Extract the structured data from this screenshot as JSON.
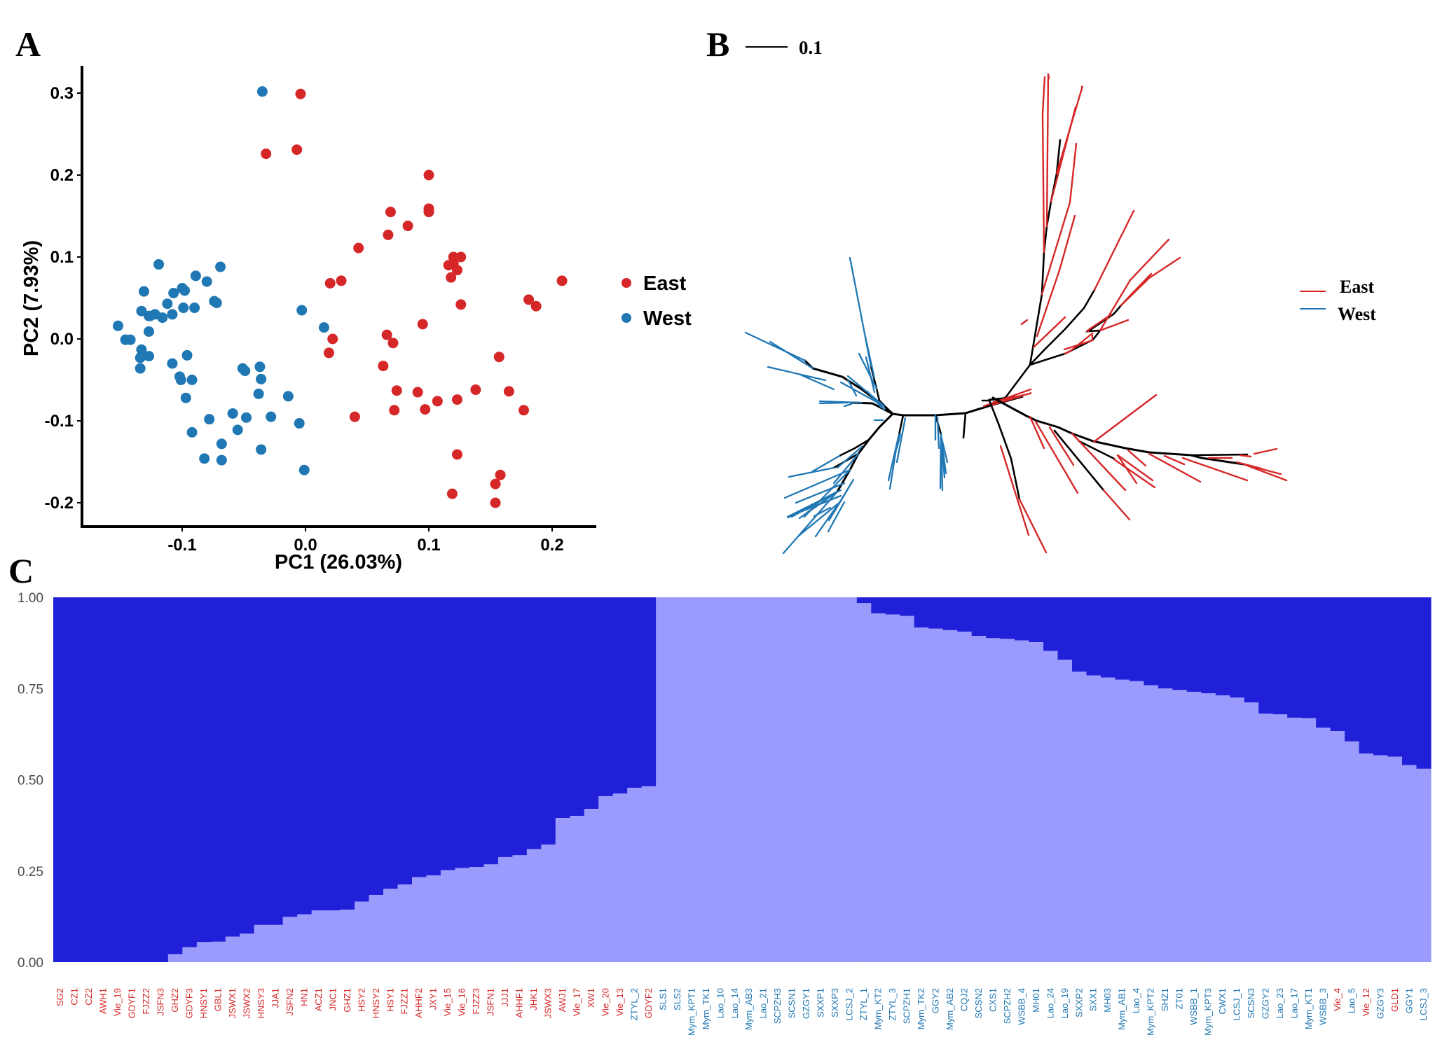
{
  "panels": {
    "a_letter": "A",
    "b_letter": "B",
    "c_letter": "C"
  },
  "colors": {
    "east": "#d62728",
    "west": "#1f77b4",
    "k1": "#2020d8",
    "k2": "#9b9bfd"
  },
  "chart_data": [
    {
      "panel": "A",
      "type": "scatter",
      "title": "",
      "xlabel": "PC1 (26.03%)",
      "ylabel": "PC2 (7.93%)",
      "xlim": [
        -0.18,
        0.235
      ],
      "ylim": [
        -0.232,
        0.33
      ],
      "xticks": [
        -0.1,
        0.0,
        0.1,
        0.2
      ],
      "xtick_labels": [
        "-0.1",
        "0.0",
        "0.1",
        "0.2"
      ],
      "yticks": [
        -0.2,
        -0.1,
        0.0,
        0.1,
        0.2,
        0.3
      ],
      "ytick_labels": [
        "-0.2",
        "-0.1",
        "0.0",
        "0.1",
        "0.2",
        "0.3"
      ],
      "grid": false,
      "legend_position": "right",
      "legend": [
        "East",
        "West"
      ],
      "series": [
        {
          "name": "East",
          "points": [
            [
              -0.004,
              0.299
            ],
            [
              -0.032,
              0.226
            ],
            [
              -0.007,
              0.231
            ],
            [
              0.1,
              0.2
            ],
            [
              0.1,
              0.159
            ],
            [
              0.1,
              0.155
            ],
            [
              0.069,
              0.155
            ],
            [
              0.083,
              0.138
            ],
            [
              0.067,
              0.127
            ],
            [
              0.043,
              0.111
            ],
            [
              0.12,
              0.1
            ],
            [
              0.126,
              0.1
            ],
            [
              0.116,
              0.09
            ],
            [
              0.12,
              0.092
            ],
            [
              0.123,
              0.084
            ],
            [
              0.118,
              0.075
            ],
            [
              0.208,
              0.071
            ],
            [
              0.029,
              0.071
            ],
            [
              0.02,
              0.068
            ],
            [
              0.181,
              0.048
            ],
            [
              0.187,
              0.04
            ],
            [
              0.126,
              0.042
            ],
            [
              0.095,
              0.018
            ],
            [
              0.066,
              0.005
            ],
            [
              0.071,
              -0.005
            ],
            [
              0.022,
              0.0
            ],
            [
              0.019,
              -0.017
            ],
            [
              0.157,
              -0.022
            ],
            [
              0.063,
              -0.033
            ],
            [
              0.074,
              -0.063
            ],
            [
              0.091,
              -0.065
            ],
            [
              0.138,
              -0.062
            ],
            [
              0.165,
              -0.064
            ],
            [
              0.107,
              -0.076
            ],
            [
              0.123,
              -0.074
            ],
            [
              0.072,
              -0.087
            ],
            [
              0.097,
              -0.086
            ],
            [
              0.177,
              -0.087
            ],
            [
              0.04,
              -0.095
            ],
            [
              0.123,
              -0.141
            ],
            [
              0.158,
              -0.166
            ],
            [
              0.154,
              -0.177
            ],
            [
              0.119,
              -0.189
            ],
            [
              0.154,
              -0.2
            ]
          ]
        },
        {
          "name": "West",
          "points": [
            [
              -0.035,
              0.302
            ],
            [
              -0.119,
              0.091
            ],
            [
              -0.069,
              0.088
            ],
            [
              -0.089,
              0.077
            ],
            [
              -0.08,
              0.07
            ],
            [
              -0.131,
              0.058
            ],
            [
              -0.107,
              0.056
            ],
            [
              -0.1,
              0.062
            ],
            [
              -0.098,
              0.059
            ],
            [
              -0.112,
              0.043
            ],
            [
              -0.074,
              0.046
            ],
            [
              -0.072,
              0.044
            ],
            [
              -0.133,
              0.034
            ],
            [
              -0.122,
              0.03
            ],
            [
              -0.127,
              0.028
            ],
            [
              -0.108,
              0.03
            ],
            [
              -0.09,
              0.038
            ],
            [
              -0.126,
              0.028
            ],
            [
              -0.099,
              0.038
            ],
            [
              -0.116,
              0.026
            ],
            [
              -0.152,
              0.016
            ],
            [
              -0.127,
              0.009
            ],
            [
              -0.142,
              -0.001
            ],
            [
              -0.146,
              -0.001
            ],
            [
              -0.003,
              0.035
            ],
            [
              0.015,
              0.014
            ],
            [
              -0.133,
              -0.013
            ],
            [
              -0.127,
              -0.021
            ],
            [
              -0.134,
              -0.023
            ],
            [
              -0.134,
              -0.036
            ],
            [
              -0.096,
              -0.02
            ],
            [
              -0.108,
              -0.03
            ],
            [
              -0.102,
              -0.046
            ],
            [
              -0.101,
              -0.05
            ],
            [
              -0.092,
              -0.05
            ],
            [
              -0.097,
              -0.072
            ],
            [
              -0.051,
              -0.036
            ],
            [
              -0.049,
              -0.039
            ],
            [
              -0.037,
              -0.034
            ],
            [
              -0.036,
              -0.049
            ],
            [
              -0.038,
              -0.067
            ],
            [
              -0.048,
              -0.096
            ],
            [
              -0.059,
              -0.091
            ],
            [
              -0.078,
              -0.098
            ],
            [
              -0.014,
              -0.07
            ],
            [
              -0.092,
              -0.114
            ],
            [
              -0.055,
              -0.111
            ],
            [
              -0.028,
              -0.095
            ],
            [
              -0.005,
              -0.103
            ],
            [
              -0.068,
              -0.128
            ],
            [
              -0.082,
              -0.146
            ],
            [
              -0.068,
              -0.148
            ],
            [
              -0.036,
              -0.135
            ],
            [
              -0.001,
              -0.16
            ]
          ]
        }
      ]
    },
    {
      "panel": "B",
      "type": "tree",
      "title": "",
      "scale_bar_label": "0.1",
      "legend_position": "right",
      "legend": [
        "East",
        "West"
      ],
      "clades": [
        {
          "name": "East",
          "description": "upper-right and lower-right clades"
        },
        {
          "name": "West",
          "description": "left clades"
        }
      ]
    },
    {
      "panel": "C",
      "type": "bar",
      "stacked": true,
      "title": "",
      "xlabel": "",
      "ylabel": "",
      "ylim": [
        0,
        1
      ],
      "yticks": [
        0.0,
        0.25,
        0.5,
        0.75,
        1.0
      ],
      "ytick_labels": [
        "0.00",
        "0.25",
        "0.50",
        "0.75",
        "1.00"
      ],
      "series_names": [
        "K2 (light)",
        "K1 (dark)"
      ],
      "categories": [
        {
          "label": "SG2",
          "group": "East",
          "k2": 0.0
        },
        {
          "label": "CZ1",
          "group": "East",
          "k2": 0.0
        },
        {
          "label": "CZ2",
          "group": "East",
          "k2": 0.0
        },
        {
          "label": "AWH1",
          "group": "East",
          "k2": 0.0
        },
        {
          "label": "Vie_19",
          "group": "East",
          "k2": 0.0
        },
        {
          "label": "GDYF1",
          "group": "East",
          "k2": 0.0
        },
        {
          "label": "FJZZ2",
          "group": "East",
          "k2": 0.0
        },
        {
          "label": "JSFN3",
          "group": "East",
          "k2": 0.0
        },
        {
          "label": "GHZ2",
          "group": "East",
          "k2": 0.022
        },
        {
          "label": "GDYF3",
          "group": "East",
          "k2": 0.041
        },
        {
          "label": "HNSY1",
          "group": "East",
          "k2": 0.055
        },
        {
          "label": "GBL1",
          "group": "East",
          "k2": 0.056
        },
        {
          "label": "JSWX1",
          "group": "East",
          "k2": 0.07
        },
        {
          "label": "JSWX2",
          "group": "East",
          "k2": 0.078
        },
        {
          "label": "HNSY3",
          "group": "East",
          "k2": 0.102
        },
        {
          "label": "JJA1",
          "group": "East",
          "k2": 0.102
        },
        {
          "label": "JSFN2",
          "group": "East",
          "k2": 0.124
        },
        {
          "label": "HN1",
          "group": "East",
          "k2": 0.131
        },
        {
          "label": "ACZ1",
          "group": "East",
          "k2": 0.142
        },
        {
          "label": "JNC1",
          "group": "East",
          "k2": 0.142
        },
        {
          "label": "GHZ1",
          "group": "East",
          "k2": 0.144
        },
        {
          "label": "HSY2",
          "group": "East",
          "k2": 0.166
        },
        {
          "label": "HNSY2",
          "group": "East",
          "k2": 0.184
        },
        {
          "label": "HSY1",
          "group": "East",
          "k2": 0.201
        },
        {
          "label": "FJZZ1",
          "group": "East",
          "k2": 0.213
        },
        {
          "label": "AHHF2",
          "group": "East",
          "k2": 0.233
        },
        {
          "label": "JXY1",
          "group": "East",
          "k2": 0.238
        },
        {
          "label": "Vie_15",
          "group": "East",
          "k2": 0.252
        },
        {
          "label": "Vie_16",
          "group": "East",
          "k2": 0.258
        },
        {
          "label": "FJZZ3",
          "group": "East",
          "k2": 0.261
        },
        {
          "label": "JSFN1",
          "group": "East",
          "k2": 0.268
        },
        {
          "label": "JJJ1",
          "group": "East",
          "k2": 0.288
        },
        {
          "label": "AHHF1",
          "group": "East",
          "k2": 0.293
        },
        {
          "label": "JHK1",
          "group": "East",
          "k2": 0.31
        },
        {
          "label": "JSWX3",
          "group": "East",
          "k2": 0.322
        },
        {
          "label": "AWJ1",
          "group": "East",
          "k2": 0.395
        },
        {
          "label": "Vie_17",
          "group": "East",
          "k2": 0.401
        },
        {
          "label": "XW1",
          "group": "East",
          "k2": 0.42
        },
        {
          "label": "Vie_20",
          "group": "East",
          "k2": 0.455
        },
        {
          "label": "Vie_13",
          "group": "East",
          "k2": 0.462
        },
        {
          "label": "ZTYL_2",
          "group": "West",
          "k2": 0.478
        },
        {
          "label": "GDYF2",
          "group": "East",
          "k2": 0.482
        },
        {
          "label": "SLS1",
          "group": "West",
          "k2": 1.0
        },
        {
          "label": "SLS2",
          "group": "West",
          "k2": 1.0
        },
        {
          "label": "Mym_KPT1",
          "group": "West",
          "k2": 1.0
        },
        {
          "label": "Mym_TK1",
          "group": "West",
          "k2": 1.0
        },
        {
          "label": "Lao_10",
          "group": "West",
          "k2": 1.0
        },
        {
          "label": "Lao_14",
          "group": "West",
          "k2": 1.0
        },
        {
          "label": "Mym_AB3",
          "group": "West",
          "k2": 1.0
        },
        {
          "label": "Lao_21",
          "group": "West",
          "k2": 1.0
        },
        {
          "label": "SCPZH3",
          "group": "West",
          "k2": 1.0
        },
        {
          "label": "SCSN1",
          "group": "West",
          "k2": 1.0
        },
        {
          "label": "GZGY1",
          "group": "West",
          "k2": 1.0
        },
        {
          "label": "SXXP1",
          "group": "West",
          "k2": 1.0
        },
        {
          "label": "SXXP3",
          "group": "West",
          "k2": 1.0
        },
        {
          "label": "LCSJ_2",
          "group": "West",
          "k2": 1.0
        },
        {
          "label": "ZTYL_1",
          "group": "West",
          "k2": 0.984
        },
        {
          "label": "Mym_KT2",
          "group": "West",
          "k2": 0.956
        },
        {
          "label": "ZTYL_3",
          "group": "West",
          "k2": 0.953
        },
        {
          "label": "SCPZH1",
          "group": "West",
          "k2": 0.949
        },
        {
          "label": "Mym_TK2",
          "group": "West",
          "k2": 0.917
        },
        {
          "label": "GGY2",
          "group": "West",
          "k2": 0.914
        },
        {
          "label": "Mym_AB2",
          "group": "West",
          "k2": 0.91
        },
        {
          "label": "CQJ2",
          "group": "West",
          "k2": 0.906
        },
        {
          "label": "SCSN2",
          "group": "West",
          "k2": 0.894
        },
        {
          "label": "CXS1",
          "group": "West",
          "k2": 0.888
        },
        {
          "label": "SCPZH2",
          "group": "West",
          "k2": 0.886
        },
        {
          "label": "WSBB_4",
          "group": "West",
          "k2": 0.882
        },
        {
          "label": "MH01",
          "group": "West",
          "k2": 0.877
        },
        {
          "label": "Lao_24",
          "group": "West",
          "k2": 0.853
        },
        {
          "label": "Lao_19",
          "group": "West",
          "k2": 0.829
        },
        {
          "label": "SXXP2",
          "group": "West",
          "k2": 0.796
        },
        {
          "label": "SXX1",
          "group": "West",
          "k2": 0.786
        },
        {
          "label": "MH03",
          "group": "West",
          "k2": 0.78
        },
        {
          "label": "Mym_AB1",
          "group": "West",
          "k2": 0.774
        },
        {
          "label": "Lao_4",
          "group": "West",
          "k2": 0.77
        },
        {
          "label": "Mym_KPT2",
          "group": "West",
          "k2": 0.759
        },
        {
          "label": "SHZ1",
          "group": "West",
          "k2": 0.75
        },
        {
          "label": "ZT01",
          "group": "West",
          "k2": 0.746
        },
        {
          "label": "WSBB_1",
          "group": "West",
          "k2": 0.741
        },
        {
          "label": "Mym_KPT3",
          "group": "West",
          "k2": 0.737
        },
        {
          "label": "CWX1",
          "group": "West",
          "k2": 0.731
        },
        {
          "label": "LCSJ_1",
          "group": "West",
          "k2": 0.725
        },
        {
          "label": "SCSN3",
          "group": "West",
          "k2": 0.712
        },
        {
          "label": "GZGY2",
          "group": "West",
          "k2": 0.681
        },
        {
          "label": "Lao_23",
          "group": "West",
          "k2": 0.679
        },
        {
          "label": "Lao_17",
          "group": "West",
          "k2": 0.67
        },
        {
          "label": "Mym_KT1",
          "group": "West",
          "k2": 0.669
        },
        {
          "label": "WSBB_3",
          "group": "West",
          "k2": 0.643
        },
        {
          "label": "Vie_4",
          "group": "East",
          "k2": 0.633
        },
        {
          "label": "Lao_5",
          "group": "West",
          "k2": 0.605
        },
        {
          "label": "Vie_12",
          "group": "East",
          "k2": 0.572
        },
        {
          "label": "GZGY3",
          "group": "West",
          "k2": 0.567
        },
        {
          "label": "GLD1",
          "group": "East",
          "k2": 0.563
        },
        {
          "label": "GGY1",
          "group": "West",
          "k2": 0.54
        },
        {
          "label": "LCSJ_3",
          "group": "West",
          "k2": 0.53
        }
      ]
    }
  ]
}
